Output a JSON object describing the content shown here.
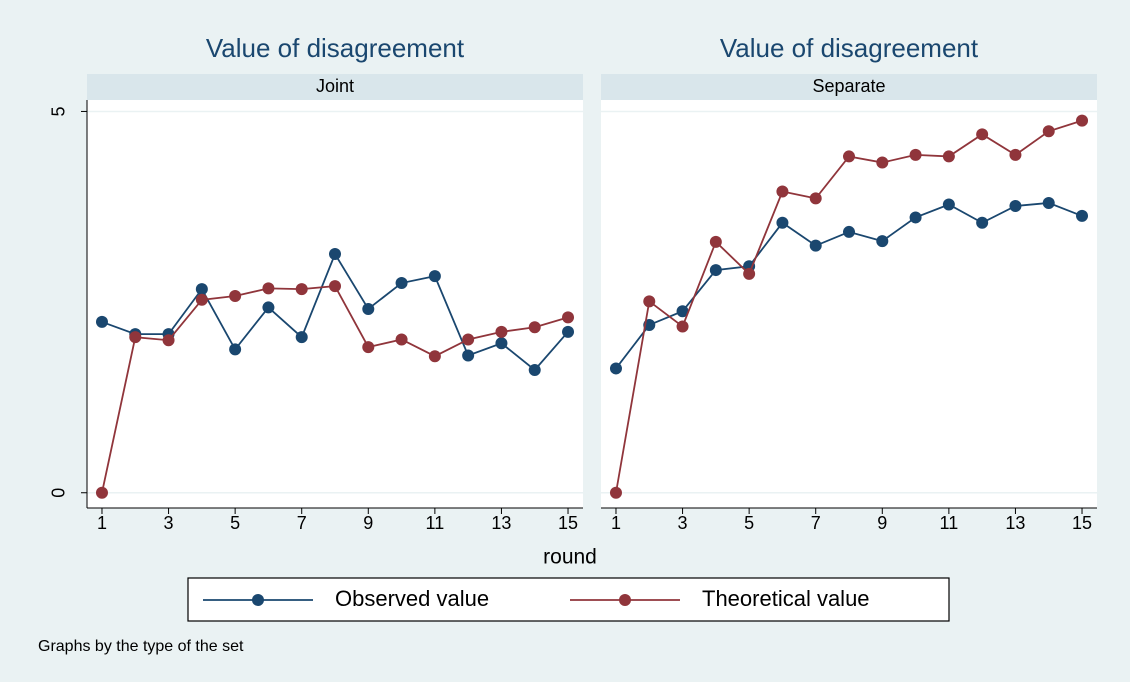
{
  "chart_data": [
    {
      "type": "line",
      "title": "Value of disagreement",
      "subtitle": "Joint",
      "x": [
        1,
        2,
        3,
        4,
        5,
        6,
        7,
        8,
        9,
        10,
        11,
        12,
        13,
        14,
        15
      ],
      "xlim": [
        0.55,
        15.45
      ],
      "xticks": [
        1,
        3,
        5,
        7,
        9,
        11,
        13,
        15
      ],
      "ylim": [
        -0.2,
        5.15
      ],
      "yticks": [
        0,
        5
      ],
      "grid": true,
      "series": [
        {
          "name": "Observed value",
          "color": "#1a476f",
          "values": [
            2.24,
            2.08,
            2.08,
            2.67,
            1.88,
            2.43,
            2.04,
            3.13,
            2.41,
            2.75,
            2.84,
            1.8,
            1.96,
            1.61,
            2.11
          ]
        },
        {
          "name": "Theoretical value",
          "color": "#90353b",
          "values": [
            0,
            2.04,
            2.0,
            2.53,
            2.58,
            2.68,
            2.67,
            2.71,
            1.91,
            2.01,
            1.79,
            2.01,
            2.11,
            2.17,
            2.3
          ]
        }
      ]
    },
    {
      "type": "line",
      "title": "Value of disagreement",
      "subtitle": "Separate",
      "x": [
        1,
        2,
        3,
        4,
        5,
        6,
        7,
        8,
        9,
        10,
        11,
        12,
        13,
        14,
        15
      ],
      "xlim": [
        0.55,
        15.45
      ],
      "xticks": [
        1,
        3,
        5,
        7,
        9,
        11,
        13,
        15
      ],
      "ylim": [
        -0.2,
        5.15
      ],
      "yticks": [
        0,
        5
      ],
      "grid": true,
      "series": [
        {
          "color": "#1a476f",
          "values": [
            1.63,
            2.2,
            2.38,
            2.92,
            2.97,
            3.54,
            3.24,
            3.42,
            3.3,
            3.61,
            3.78,
            3.54,
            3.76,
            3.8,
            3.63
          ]
        },
        {
          "color": "#90353b",
          "values": [
            0,
            2.51,
            2.18,
            3.29,
            2.87,
            3.95,
            3.86,
            4.41,
            4.33,
            4.43,
            4.41,
            4.7,
            4.43,
            4.74,
            4.88
          ]
        }
      ]
    }
  ],
  "xlabel": "round",
  "note": "Graphs by the type of the set"
}
